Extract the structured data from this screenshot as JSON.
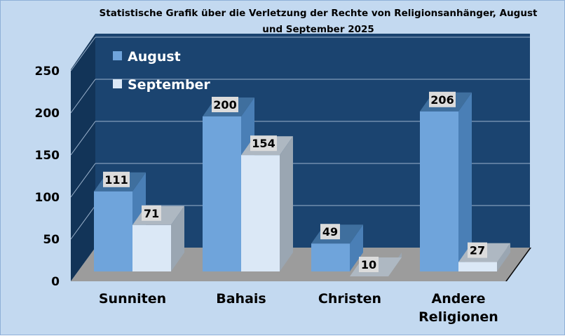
{
  "chart_data": {
    "type": "bar",
    "title_lines": [
      "Statistische Grafik über die Verletzung der Rechte von Religionsanhänger, August",
      "und September 2025"
    ],
    "categories": [
      [
        "Sunniten"
      ],
      [
        "Bahais"
      ],
      [
        "Christen"
      ],
      [
        "Andere",
        "Religionen"
      ]
    ],
    "series": [
      {
        "name": "August",
        "values": [
          111,
          200,
          49,
          206
        ]
      },
      {
        "name": "September",
        "values": [
          71,
          154,
          10,
          27
        ]
      }
    ],
    "ylim": [
      0,
      250
    ],
    "yticks": [
      "0",
      "50",
      "100",
      "150",
      "200",
      "250"
    ],
    "grid": true,
    "legend": "top-left",
    "colors": {
      "background": "#c3d9f0",
      "back_wall": "#1b4470",
      "side_wall": "#123458",
      "floor": "#9c9c9c",
      "floor_edge": "#0a0a0a",
      "gridline": "#9bb2cc",
      "series_1": "#6fa4db",
      "series_1_side": "#4a7fb6",
      "series_1_top": "#3f6f9e",
      "series_2": "#dbe8f6",
      "series_2_side": "#9aa6b2",
      "series_2_top": "#aeb8c2",
      "label_box": "#dcdcdc"
    }
  }
}
